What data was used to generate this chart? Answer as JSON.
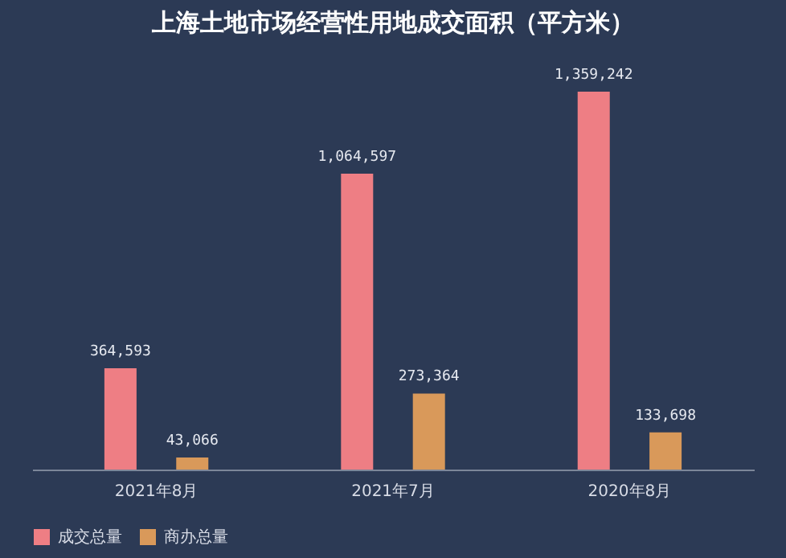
{
  "chart_data": {
    "type": "bar",
    "title": "上海土地市场经营性用地成交面积（平方米）",
    "categories": [
      "2021年8月",
      "2021年7月",
      "2020年8月"
    ],
    "series": [
      {
        "name": "成交总量",
        "color": "#ee7e84",
        "values": [
          364593,
          1064597,
          1359242
        ],
        "value_labels": [
          "364,593",
          "1,064,597",
          "1,359,242"
        ]
      },
      {
        "name": "商办总量",
        "color": "#d9995a",
        "values": [
          43066,
          273364,
          133698
        ],
        "value_labels": [
          "43,066",
          "273,364",
          "133,698"
        ]
      }
    ],
    "legend": "bottom",
    "grid": false
  }
}
